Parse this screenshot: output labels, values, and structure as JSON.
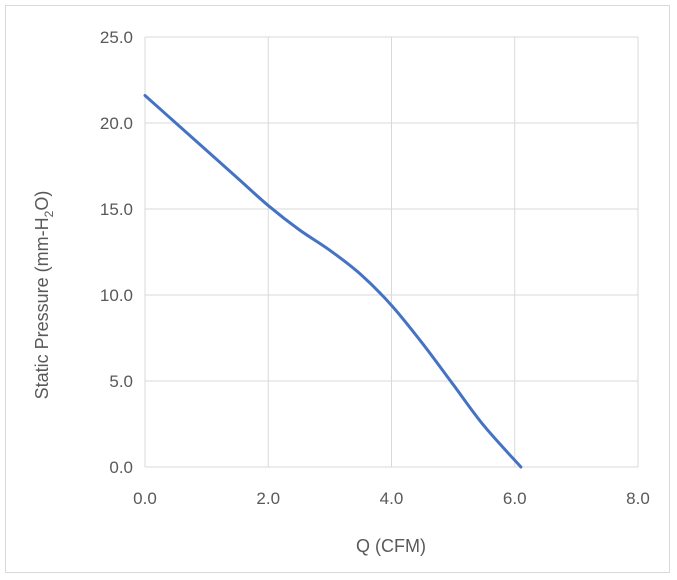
{
  "chart_data": {
    "type": "line",
    "title": "",
    "xlabel": "Q (CFM)",
    "ylabel": {
      "prefix": "Static Pressure (mm-H",
      "subscript": "2",
      "suffix": "O)"
    },
    "xlim": [
      0,
      8
    ],
    "ylim": [
      0,
      25
    ],
    "x_ticks": [
      "0.0",
      "2.0",
      "4.0",
      "6.0",
      "8.0"
    ],
    "y_ticks": [
      "0.0",
      "5.0",
      "10.0",
      "15.0",
      "20.0",
      "25.0"
    ],
    "grid": true,
    "legend": "none",
    "series": [
      {
        "color": "#4472c4",
        "points": [
          [
            0.0,
            21.6
          ],
          [
            0.5,
            20.0
          ],
          [
            1.0,
            18.4
          ],
          [
            1.5,
            16.8
          ],
          [
            2.0,
            15.2
          ],
          [
            2.5,
            13.8
          ],
          [
            3.0,
            12.6
          ],
          [
            3.5,
            11.2
          ],
          [
            4.0,
            9.4
          ],
          [
            4.5,
            7.2
          ],
          [
            5.0,
            4.8
          ],
          [
            5.5,
            2.4
          ],
          [
            6.1,
            0.0
          ]
        ]
      }
    ]
  }
}
